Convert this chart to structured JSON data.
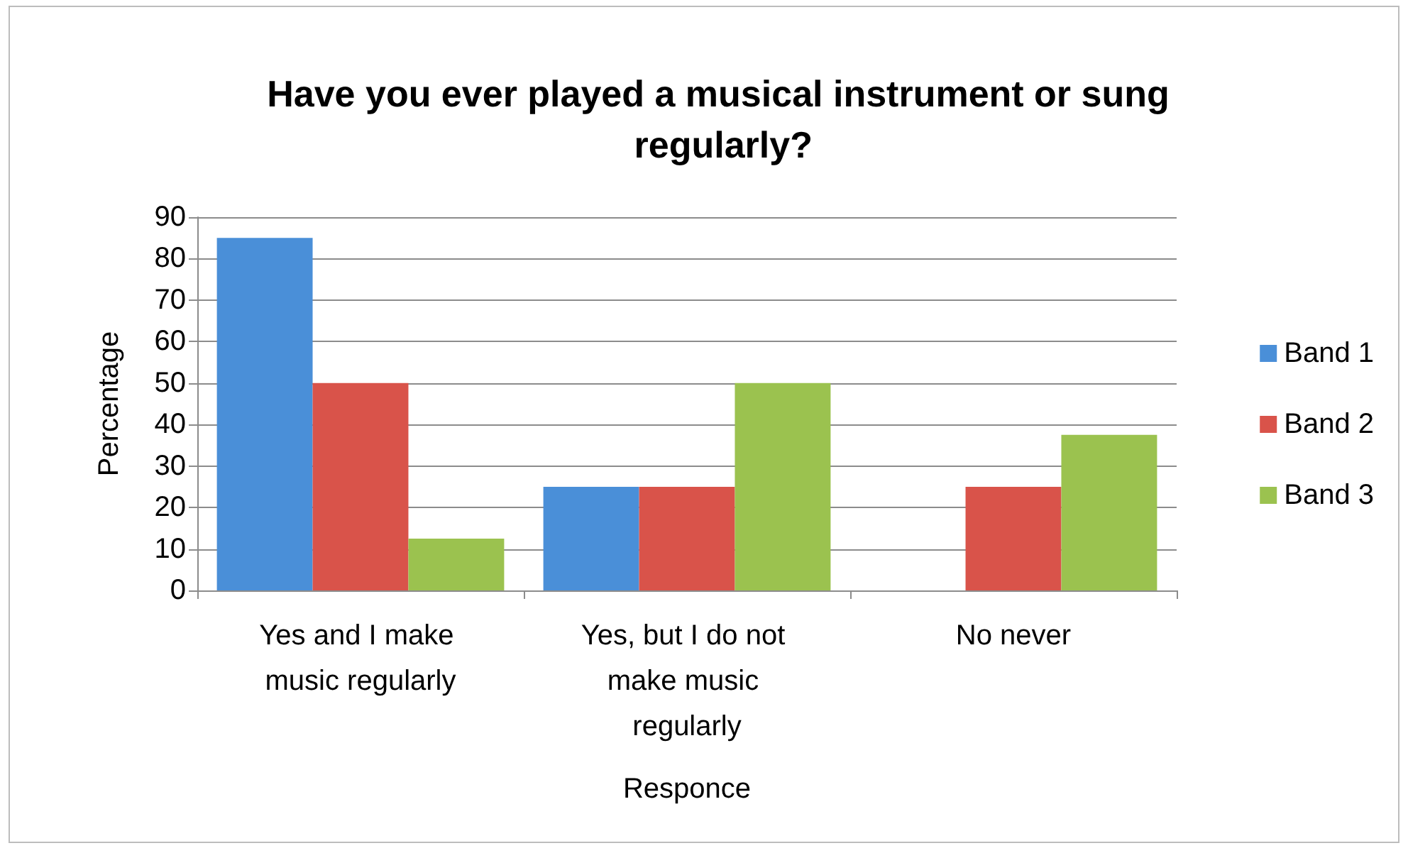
{
  "chart_data": {
    "type": "bar",
    "title": "Have you ever played a musical instrument or sung regularly?",
    "xlabel": "Responce",
    "ylabel": "Percentage",
    "categories": [
      "Yes and I make music regularly",
      "Yes, but I do not make music regularly",
      "No never"
    ],
    "series": [
      {
        "name": "Band 1",
        "color": "#4a8fd8",
        "values": [
          85,
          25,
          0
        ]
      },
      {
        "name": "Band 2",
        "color": "#d9534a",
        "values": [
          50,
          25,
          25
        ]
      },
      {
        "name": "Band 3",
        "color": "#9bc24f",
        "values": [
          12.5,
          50,
          37.5
        ]
      }
    ],
    "ylim": [
      0,
      90
    ],
    "yticks": [
      0,
      10,
      20,
      30,
      40,
      50,
      60,
      70,
      80,
      90
    ],
    "grid": "y",
    "legend": "right"
  }
}
